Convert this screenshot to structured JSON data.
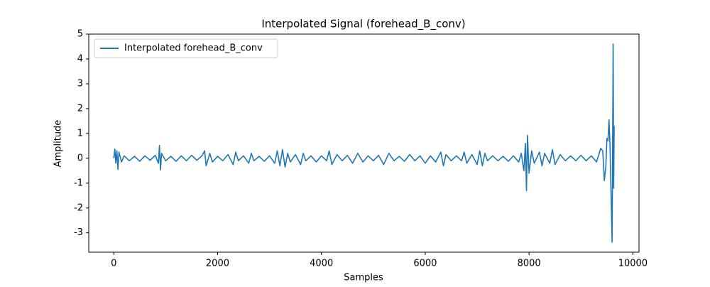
{
  "chart_data": {
    "type": "line",
    "title": "Interpolated Signal (forehead_B_conv)",
    "x_label": "Samples",
    "y_label": "Amplitude",
    "x": [
      0,
      20,
      40,
      60,
      80,
      100,
      150,
      200,
      300,
      400,
      500,
      600,
      700,
      800,
      860,
      880,
      900,
      920,
      1000,
      1100,
      1200,
      1300,
      1400,
      1500,
      1600,
      1700,
      1750,
      1780,
      1850,
      1900,
      2000,
      2100,
      2200,
      2300,
      2350,
      2400,
      2500,
      2600,
      2650,
      2700,
      2800,
      2900,
      3000,
      3100,
      3150,
      3200,
      3250,
      3300,
      3350,
      3400,
      3500,
      3600,
      3650,
      3700,
      3800,
      3900,
      4000,
      4100,
      4150,
      4200,
      4300,
      4400,
      4500,
      4600,
      4700,
      4800,
      4900,
      5000,
      5100,
      5200,
      5300,
      5400,
      5500,
      5600,
      5700,
      5800,
      5900,
      6000,
      6100,
      6200,
      6300,
      6350,
      6400,
      6500,
      6600,
      6700,
      6750,
      6800,
      6900,
      7000,
      7050,
      7100,
      7150,
      7200,
      7300,
      7400,
      7500,
      7600,
      7700,
      7800,
      7850,
      7900,
      7930,
      7950,
      7970,
      8000,
      8050,
      8100,
      8200,
      8250,
      8300,
      8400,
      8450,
      8500,
      8600,
      8700,
      8800,
      8900,
      9000,
      9100,
      9200,
      9300,
      9380,
      9420,
      9450,
      9480,
      9500,
      9520,
      9540,
      9560,
      9580,
      9600,
      9620,
      9630,
      9640
    ],
    "series": [
      {
        "name": "Interpolated forehead_B_conv",
        "color": "#1f77b4",
        "values": [
          0,
          0.37,
          -0.2,
          0.3,
          -0.45,
          0.25,
          -0.15,
          0.1,
          -0.1,
          0.08,
          -0.12,
          0.1,
          -0.08,
          0.12,
          -0.2,
          0.52,
          -0.47,
          0.2,
          -0.1,
          0.08,
          -0.12,
          0.1,
          -0.1,
          0.12,
          -0.08,
          0.1,
          0.3,
          -0.3,
          0.2,
          -0.15,
          0.08,
          -0.1,
          0.15,
          -0.25,
          0.25,
          -0.1,
          0.1,
          -0.2,
          0.2,
          -0.1,
          0.08,
          -0.12,
          0.1,
          -0.2,
          0.3,
          -0.3,
          0.35,
          -0.35,
          0.2,
          -0.15,
          0.15,
          -0.25,
          0.2,
          -0.1,
          0.1,
          -0.15,
          0.1,
          -0.1,
          0.3,
          -0.25,
          0.15,
          -0.1,
          0.12,
          -0.2,
          0.2,
          -0.15,
          0.1,
          -0.1,
          0.12,
          -0.25,
          0.2,
          -0.1,
          0.08,
          -0.12,
          0.15,
          -0.1,
          0.1,
          -0.2,
          0.1,
          -0.15,
          0.25,
          -0.3,
          0.15,
          -0.1,
          0.1,
          -0.1,
          0.25,
          -0.2,
          0.15,
          -0.25,
          0.3,
          -0.3,
          0.2,
          -0.1,
          0.1,
          -0.1,
          0.08,
          -0.12,
          0.1,
          -0.15,
          0.2,
          -0.5,
          0.6,
          -1.3,
          0.93,
          -0.6,
          0.3,
          -0.2,
          0.25,
          -0.3,
          0.2,
          -0.2,
          0.35,
          -0.25,
          0.15,
          -0.1,
          0.1,
          -0.1,
          0.12,
          -0.1,
          0.1,
          -0.15,
          0.4,
          0.3,
          -0.9,
          -0.3,
          0.8,
          0.7,
          1.55,
          0.5,
          -1.5,
          -3.38,
          4.6,
          -1.2,
          1.3
        ]
      }
    ],
    "xlim": [
      -482,
      10118
    ],
    "xticks": [
      0,
      2000,
      4000,
      6000,
      8000,
      10000
    ],
    "ylim": [
      -3.78,
      5.0
    ],
    "yticks": [
      -3,
      -2,
      -1,
      0,
      1,
      2,
      3,
      4,
      5
    ],
    "legend": "upper left"
  }
}
